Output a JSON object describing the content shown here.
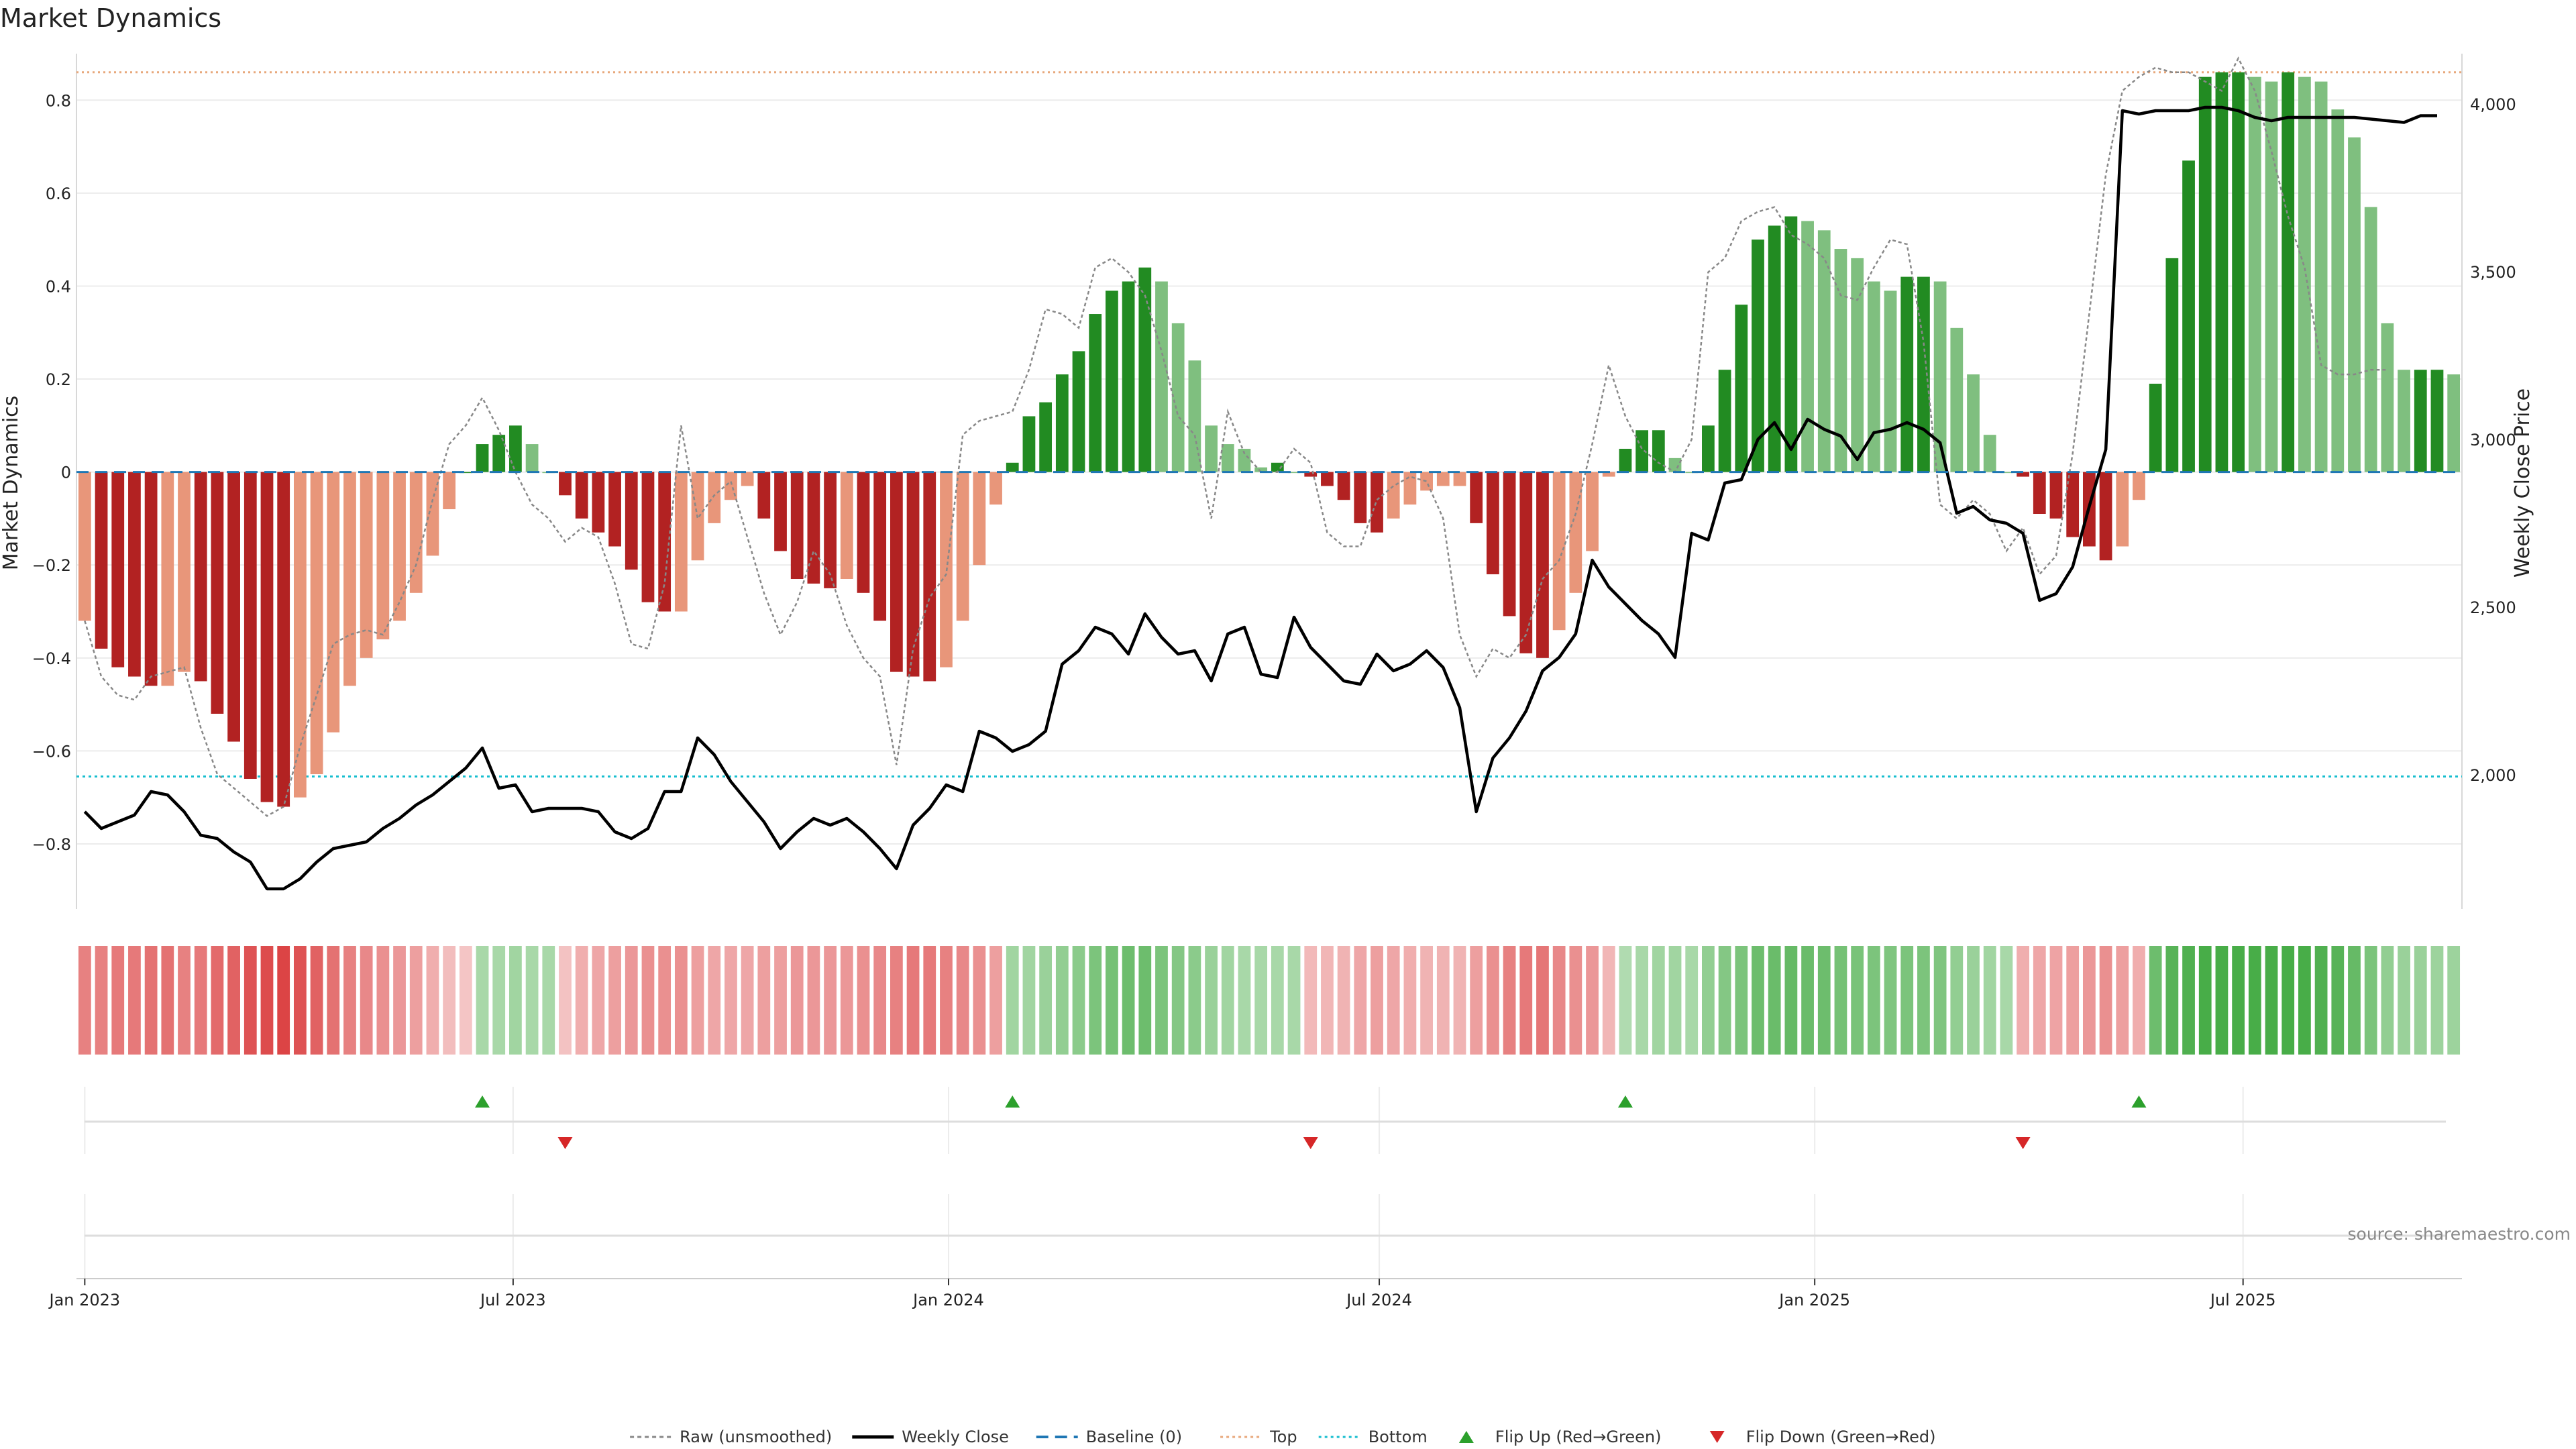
{
  "chart_data": {
    "type": "bar",
    "title": "Market Dynamics",
    "ylabel": "Market Dynamics",
    "y2label": "Weekly Close Price",
    "ylim": [
      -0.94,
      0.9
    ],
    "y2lim": [
      1600,
      4150
    ],
    "yticks": [
      0.8,
      0.6,
      0.4,
      0.2,
      0,
      -0.2,
      -0.4,
      -0.6,
      -0.8
    ],
    "ytick_labels": [
      "0.8",
      "0.6",
      "0.4",
      "0.2",
      "0",
      "−0.2",
      "−0.4",
      "−0.6",
      "−0.8"
    ],
    "y2ticks": [
      4000,
      3500,
      3000,
      2500,
      2000
    ],
    "y2tick_labels": [
      "4,000",
      "3,500",
      "3,000",
      "2,500",
      "2,000"
    ],
    "x_start": "2023-01-01",
    "x_step_days": 7,
    "xticks": [
      "2023-01-01",
      "2023-07-01",
      "2024-01-01",
      "2024-07-01",
      "2025-01-01",
      "2025-07-01"
    ],
    "xtick_labels": [
      "Jan 2023",
      "Jul 2023",
      "Jan 2024",
      "Jul 2024",
      "Jan 2025",
      "Jul 2025"
    ],
    "top_level": 0.86,
    "bottom_level": -0.655,
    "baseline": 0,
    "grid": true,
    "legend_position": "bottom-center",
    "legend": [
      "Raw (unsmoothed)",
      "Weekly Close",
      "Baseline (0)",
      "Top",
      "Bottom",
      "Flip Up (Red→Green)",
      "Flip Down (Green→Red)"
    ],
    "source": "source: sharemaestro.com",
    "colors": {
      "red_strong": "#b22222",
      "red_light": "#e8967a",
      "green_strong": "#228b22",
      "green_light": "#7fbf7f",
      "close": "#000000",
      "raw": "#888888",
      "baseline": "#1f77b4",
      "top": "#e8a87c",
      "bottom": "#17becf",
      "flip_up": "#2ca02c",
      "flip_down": "#d62728"
    },
    "series": [
      {
        "name": "Market Dynamics",
        "values": [
          -0.32,
          -0.38,
          -0.42,
          -0.44,
          -0.46,
          -0.46,
          -0.43,
          -0.45,
          -0.52,
          -0.58,
          -0.66,
          -0.71,
          -0.72,
          -0.7,
          -0.65,
          -0.56,
          -0.46,
          -0.4,
          -0.36,
          -0.32,
          -0.26,
          -0.18,
          -0.08,
          0.0,
          0.06,
          0.08,
          0.1,
          0.06,
          0.0,
          -0.05,
          -0.1,
          -0.13,
          -0.16,
          -0.21,
          -0.28,
          -0.3,
          -0.3,
          -0.19,
          -0.11,
          -0.06,
          -0.03,
          -0.1,
          -0.17,
          -0.23,
          -0.24,
          -0.25,
          -0.23,
          -0.26,
          -0.32,
          -0.43,
          -0.44,
          -0.45,
          -0.42,
          -0.32,
          -0.2,
          -0.07,
          0.02,
          0.12,
          0.15,
          0.21,
          0.26,
          0.34,
          0.39,
          0.41,
          0.44,
          0.41,
          0.32,
          0.24,
          0.1,
          0.06,
          0.05,
          0.01,
          0.02,
          0.0,
          -0.01,
          -0.03,
          -0.06,
          -0.11,
          -0.13,
          -0.1,
          -0.07,
          -0.04,
          -0.03,
          -0.03,
          -0.11,
          -0.22,
          -0.31,
          -0.39,
          -0.4,
          -0.34,
          -0.26,
          -0.17,
          -0.01,
          0.05,
          0.09,
          0.09,
          0.03,
          0.0,
          0.1,
          0.22,
          0.36,
          0.5,
          0.53,
          0.55,
          0.54,
          0.52,
          0.48,
          0.46,
          0.41,
          0.39,
          0.42,
          0.42,
          0.41,
          0.31,
          0.21,
          0.08,
          0.0,
          -0.01,
          -0.09,
          -0.1,
          -0.14,
          -0.16,
          -0.19,
          -0.16,
          -0.06,
          0.19,
          0.46,
          0.67,
          0.85,
          0.86,
          0.86,
          0.85,
          0.84,
          0.86,
          0.85,
          0.84,
          0.78,
          0.72,
          0.57,
          0.32,
          0.22,
          0.22,
          0.22,
          0.21
        ]
      },
      {
        "name": "Raw (unsmoothed)",
        "values": [
          -0.32,
          -0.44,
          -0.48,
          -0.49,
          -0.44,
          -0.43,
          -0.42,
          -0.55,
          -0.65,
          -0.68,
          -0.71,
          -0.74,
          -0.72,
          -0.59,
          -0.48,
          -0.37,
          -0.35,
          -0.34,
          -0.35,
          -0.28,
          -0.2,
          -0.06,
          0.06,
          0.1,
          0.16,
          0.09,
          0.0,
          -0.07,
          -0.1,
          -0.15,
          -0.12,
          -0.14,
          -0.24,
          -0.37,
          -0.38,
          -0.24,
          0.1,
          -0.1,
          -0.05,
          -0.02,
          -0.14,
          -0.26,
          -0.35,
          -0.28,
          -0.17,
          -0.22,
          -0.33,
          -0.4,
          -0.44,
          -0.63,
          -0.38,
          -0.27,
          -0.22,
          0.08,
          0.11,
          0.12,
          0.13,
          0.22,
          0.35,
          0.34,
          0.31,
          0.44,
          0.46,
          0.43,
          0.38,
          0.26,
          0.12,
          0.08,
          -0.1,
          0.13,
          0.04,
          0.0,
          0.0,
          0.05,
          0.02,
          -0.13,
          -0.16,
          -0.16,
          -0.06,
          -0.03,
          -0.01,
          -0.02,
          -0.1,
          -0.35,
          -0.44,
          -0.38,
          -0.4,
          -0.35,
          -0.23,
          -0.19,
          -0.09,
          0.06,
          0.23,
          0.12,
          0.05,
          0.02,
          0.0,
          0.07,
          0.43,
          0.46,
          0.54,
          0.56,
          0.57,
          0.51,
          0.49,
          0.46,
          0.38,
          0.37,
          0.44,
          0.5,
          0.49,
          0.28,
          -0.07,
          -0.1,
          -0.06,
          -0.09,
          -0.17,
          -0.12,
          -0.22,
          -0.18,
          0.04,
          0.34,
          0.64,
          0.82,
          0.85,
          0.87,
          0.86,
          0.86,
          0.84,
          0.82,
          0.89,
          0.82,
          0.69,
          0.55,
          0.44,
          0.23,
          0.21,
          0.21,
          0.22,
          0.22
        ]
      },
      {
        "name": "Weekly Close",
        "values": [
          1890,
          1840,
          1860,
          1880,
          1950,
          1940,
          1890,
          1820,
          1810,
          1770,
          1740,
          1660,
          1660,
          1690,
          1740,
          1780,
          1790,
          1800,
          1840,
          1870,
          1910,
          1940,
          1980,
          2020,
          2080,
          1960,
          1970,
          1890,
          1900,
          1900,
          1900,
          1890,
          1830,
          1810,
          1840,
          1950,
          1950,
          2110,
          2060,
          1980,
          1920,
          1860,
          1780,
          1830,
          1870,
          1850,
          1870,
          1830,
          1780,
          1720,
          1850,
          1900,
          1970,
          1950,
          2130,
          2110,
          2070,
          2090,
          2130,
          2330,
          2370,
          2440,
          2420,
          2360,
          2480,
          2410,
          2360,
          2370,
          2280,
          2420,
          2440,
          2300,
          2290,
          2470,
          2380,
          2330,
          2280,
          2270,
          2360,
          2310,
          2330,
          2370,
          2320,
          2200,
          1890,
          2050,
          2110,
          2190,
          2310,
          2350,
          2420,
          2640,
          2560,
          2510,
          2460,
          2420,
          2350,
          2720,
          2700,
          2870,
          2880,
          3000,
          3050,
          2970,
          3060,
          3030,
          3010,
          2940,
          3020,
          3030,
          3050,
          3030,
          2990,
          2780,
          2800,
          2760,
          2750,
          2720,
          2520,
          2540,
          2620,
          2800,
          2970,
          3980,
          3970,
          3980,
          3980,
          3980,
          3990,
          3990,
          3980,
          3960,
          3950,
          3960,
          3960,
          3960,
          3960,
          3960,
          3955,
          3950,
          3945,
          3965,
          3965
        ]
      }
    ],
    "regime": {
      "name": "Regime strip",
      "values": [
        -0.55,
        -0.55,
        -0.6,
        -0.6,
        -0.65,
        -0.65,
        -0.55,
        -0.6,
        -0.7,
        -0.75,
        -0.85,
        -0.9,
        -0.95,
        -0.85,
        -0.75,
        -0.65,
        -0.55,
        -0.5,
        -0.45,
        -0.4,
        -0.35,
        -0.25,
        -0.15,
        -0.1,
        0.3,
        0.3,
        0.35,
        0.3,
        0.3,
        -0.12,
        -0.25,
        -0.3,
        -0.35,
        -0.4,
        -0.45,
        -0.45,
        -0.45,
        -0.35,
        -0.3,
        -0.3,
        -0.3,
        -0.35,
        -0.35,
        -0.4,
        -0.4,
        -0.4,
        -0.4,
        -0.45,
        -0.5,
        -0.55,
        -0.6,
        -0.6,
        -0.55,
        -0.5,
        -0.45,
        -0.35,
        0.35,
        0.35,
        0.4,
        0.45,
        0.5,
        0.6,
        0.65,
        0.7,
        0.7,
        0.6,
        0.55,
        0.5,
        0.4,
        0.35,
        0.3,
        0.3,
        0.3,
        0.3,
        -0.18,
        -0.2,
        -0.22,
        -0.3,
        -0.35,
        -0.3,
        -0.25,
        -0.22,
        -0.22,
        -0.22,
        -0.35,
        -0.45,
        -0.55,
        -0.6,
        -0.62,
        -0.5,
        -0.45,
        -0.4,
        -0.2,
        0.25,
        0.3,
        0.35,
        0.35,
        0.3,
        0.45,
        0.55,
        0.6,
        0.7,
        0.72,
        0.75,
        0.72,
        0.7,
        0.65,
        0.62,
        0.6,
        0.58,
        0.6,
        0.6,
        0.58,
        0.45,
        0.4,
        0.35,
        0.3,
        -0.25,
        -0.3,
        -0.32,
        -0.35,
        -0.4,
        -0.45,
        -0.35,
        -0.25,
        0.7,
        0.85,
        0.9,
        0.95,
        0.95,
        0.95,
        0.95,
        0.95,
        0.95,
        0.95,
        0.9,
        0.85,
        0.75,
        0.6,
        0.45,
        0.4,
        0.4,
        0.38,
        0.38
      ]
    },
    "flips": {
      "up_index": [
        24,
        56,
        93,
        124
      ],
      "down_index": [
        29,
        74,
        117
      ]
    }
  }
}
